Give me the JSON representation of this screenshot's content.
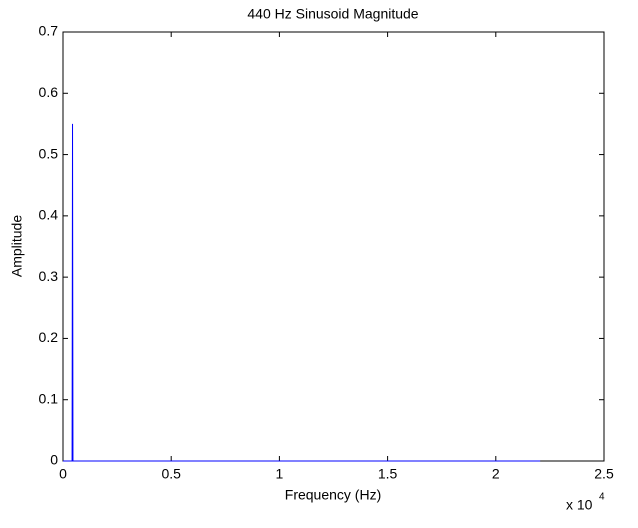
{
  "chart_data": {
    "type": "line",
    "title": "440 Hz Sinusoid Magnitude",
    "x_label": "Frequency (Hz)",
    "y_label": "Amplitude",
    "x_multiplier": {
      "base": "x 10",
      "exponent": "4"
    },
    "x": [
      0,
      0.042,
      0.044,
      0.046,
      2.205
    ],
    "series": [
      {
        "name": "Magnitude",
        "color": "#0000ff",
        "values": [
          0,
          0,
          0.55,
          0,
          0
        ]
      }
    ],
    "xlim": [
      0,
      2.5
    ],
    "xticks": [
      0,
      0.5,
      1,
      1.5,
      2,
      2.5
    ],
    "ylim": [
      0,
      0.7
    ],
    "yticks": [
      0,
      0.1,
      0.2,
      0.3,
      0.4,
      0.5,
      0.6,
      0.7
    ],
    "grid": false,
    "legend": false
  }
}
